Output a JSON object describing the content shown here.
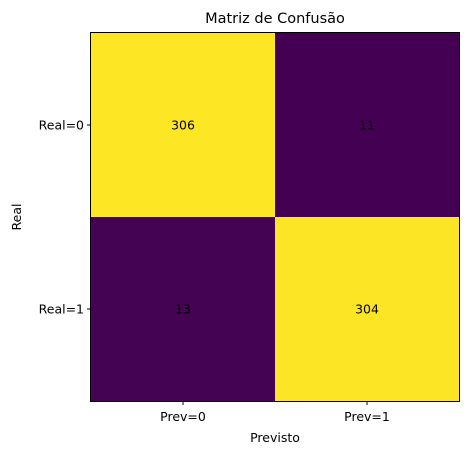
{
  "chart_data": {
    "type": "heatmap",
    "title": "Matriz de Confusão",
    "xlabel": "Previsto",
    "ylabel": "Real",
    "x_categories": [
      "Prev=0",
      "Prev=1"
    ],
    "y_categories": [
      "Real=0",
      "Real=1"
    ],
    "values": [
      [
        306,
        11
      ],
      [
        13,
        304
      ]
    ],
    "colormap": {
      "low": "#440154",
      "high": "#fde725"
    },
    "grid": false,
    "legend": "none"
  }
}
